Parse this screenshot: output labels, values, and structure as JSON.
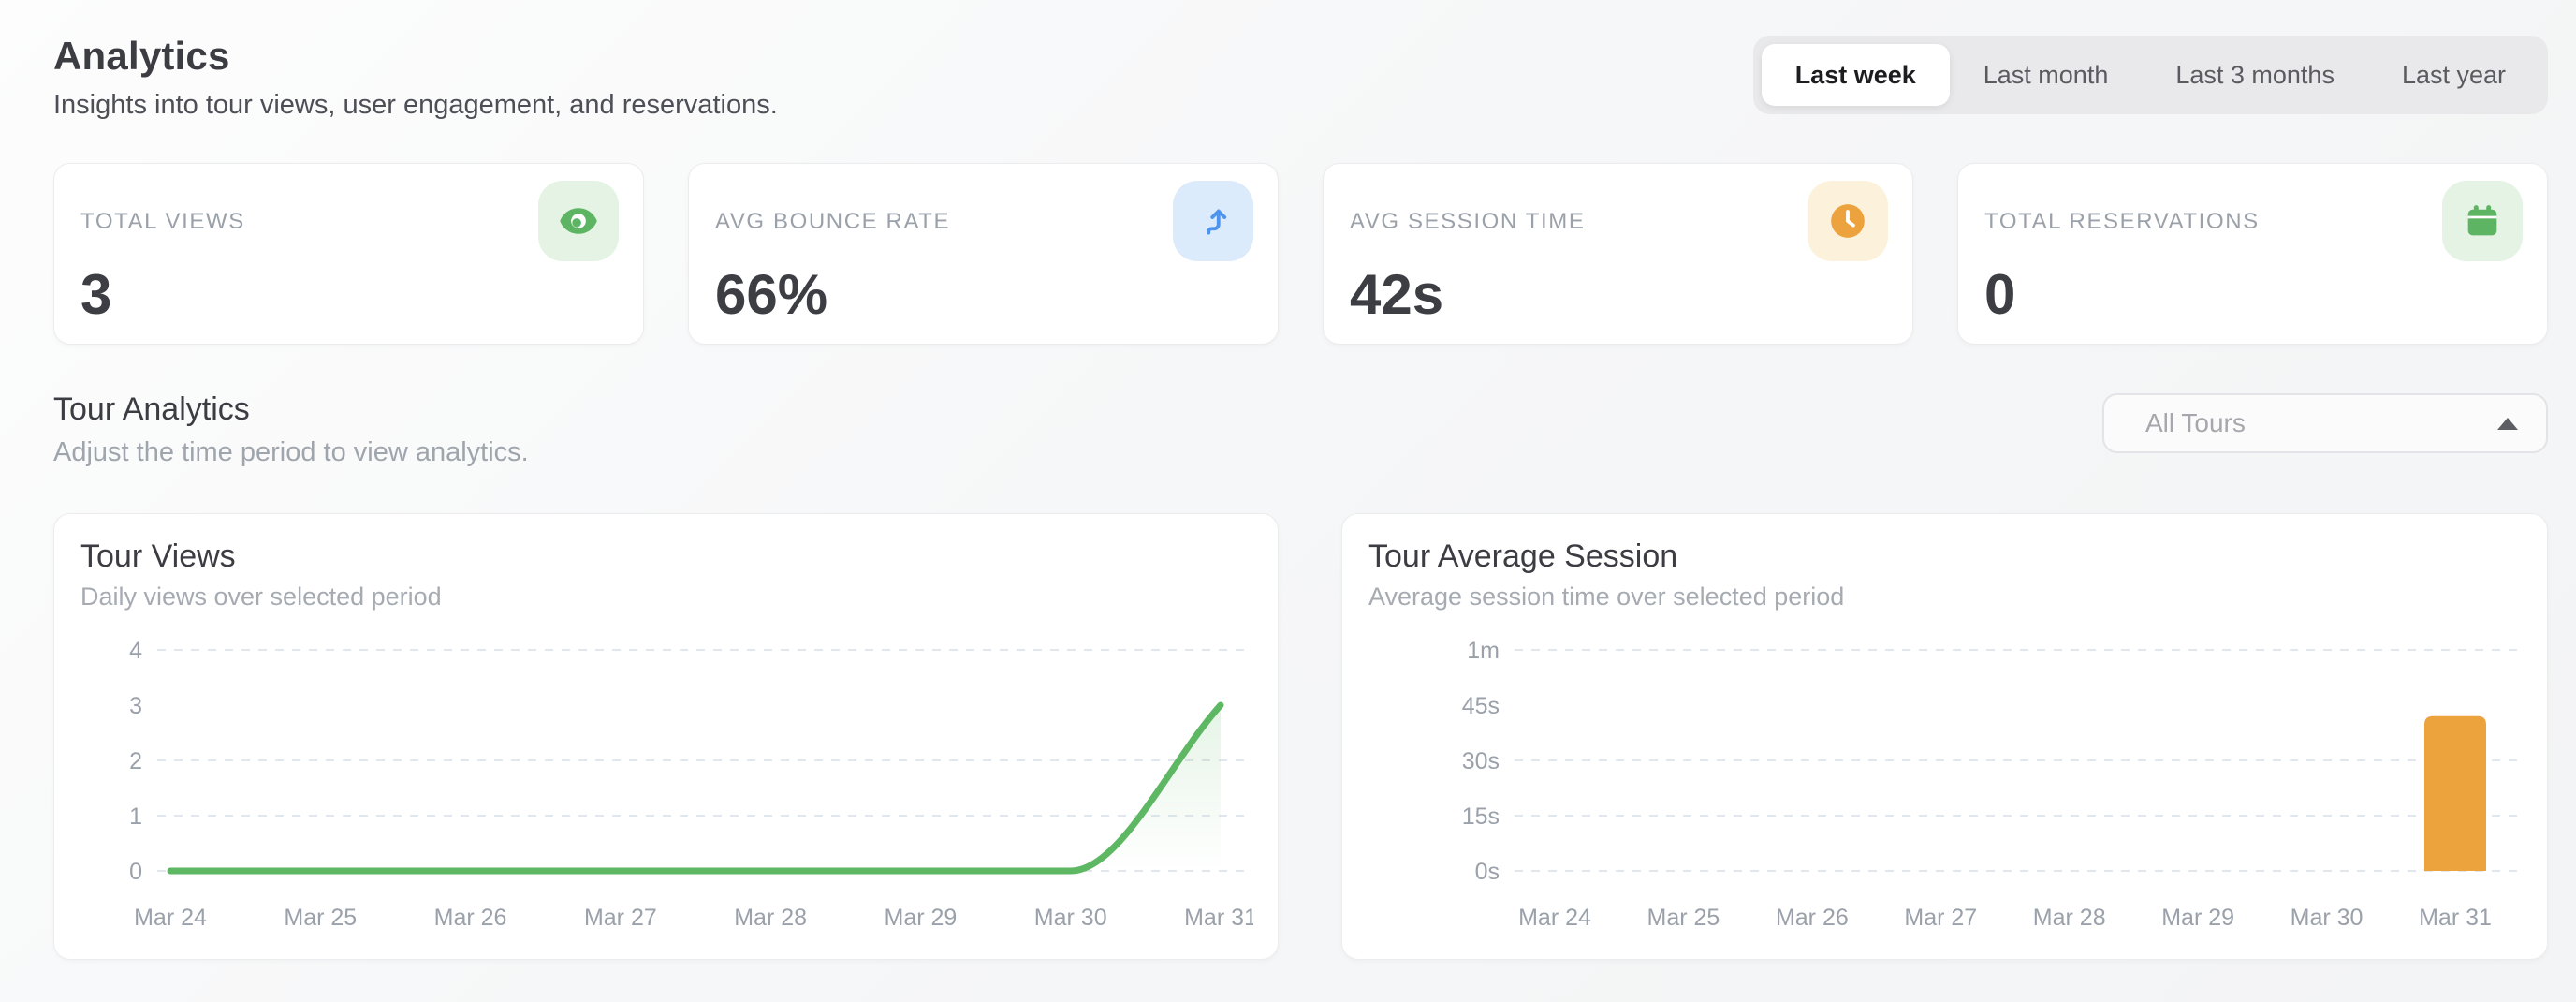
{
  "header": {
    "title": "Analytics",
    "subtitle": "Insights into tour views, user engagement, and reservations."
  },
  "tabs": {
    "items": [
      {
        "label": "Last week",
        "active": true
      },
      {
        "label": "Last month",
        "active": false
      },
      {
        "label": "Last 3 months",
        "active": false
      },
      {
        "label": "Last year",
        "active": false
      }
    ]
  },
  "stats": [
    {
      "label": "TOTAL VIEWS",
      "value": "3",
      "icon": "eye-icon",
      "accent": "#5db463",
      "icon_bg": "#e4f3e4"
    },
    {
      "label": "AVG BOUNCE RATE",
      "value": "66%",
      "icon": "arrow-up-icon",
      "accent": "#4e93ec",
      "icon_bg": "#dcebfc"
    },
    {
      "label": "AVG SESSION TIME",
      "value": "42s",
      "icon": "clock-icon",
      "accent": "#eca23d",
      "icon_bg": "#fcf2dc"
    },
    {
      "label": "TOTAL RESERVATIONS",
      "value": "0",
      "icon": "calendar-icon",
      "accent": "#5db463",
      "icon_bg": "#e4f3e4"
    }
  ],
  "section": {
    "title": "Tour Analytics",
    "subtitle": "Adjust the time period to view analytics.",
    "filter_value": "All Tours"
  },
  "chart_data": [
    {
      "type": "line",
      "title": "Tour Views",
      "subtitle": "Daily views over selected period",
      "categories": [
        "Mar 24",
        "Mar 25",
        "Mar 26",
        "Mar 27",
        "Mar 28",
        "Mar 29",
        "Mar 30",
        "Mar 31"
      ],
      "values": [
        0,
        0,
        0,
        0,
        0,
        0,
        0,
        3
      ],
      "ylim": [
        0,
        4
      ],
      "y_ticks": [
        {
          "label": "0",
          "value": 0,
          "grid": true
        },
        {
          "label": "1",
          "value": 1,
          "grid": true
        },
        {
          "label": "2",
          "value": 2,
          "grid": true
        },
        {
          "label": "3",
          "value": 3,
          "grid": false
        },
        {
          "label": "4",
          "value": 4,
          "grid": true
        }
      ],
      "color": "#5eb763",
      "grid": "horizontal-dashed",
      "legend": "none"
    },
    {
      "type": "bar",
      "title": "Tour Average Session",
      "subtitle": "Average session time over selected period",
      "categories": [
        "Mar 24",
        "Mar 25",
        "Mar 26",
        "Mar 27",
        "Mar 28",
        "Mar 29",
        "Mar 30",
        "Mar 31"
      ],
      "values": [
        0,
        0,
        0,
        0,
        0,
        0,
        0,
        42
      ],
      "unit": "seconds",
      "ylim": [
        0,
        60
      ],
      "y_ticks": [
        {
          "label": "0s",
          "value": 0,
          "grid": true
        },
        {
          "label": "15s",
          "value": 15,
          "grid": true
        },
        {
          "label": "30s",
          "value": 30,
          "grid": true
        },
        {
          "label": "45s",
          "value": 45,
          "grid": false
        },
        {
          "label": "1m",
          "value": 60,
          "grid": true
        }
      ],
      "color": "#eca23d",
      "grid": "horizontal-dashed",
      "legend": "none"
    }
  ]
}
